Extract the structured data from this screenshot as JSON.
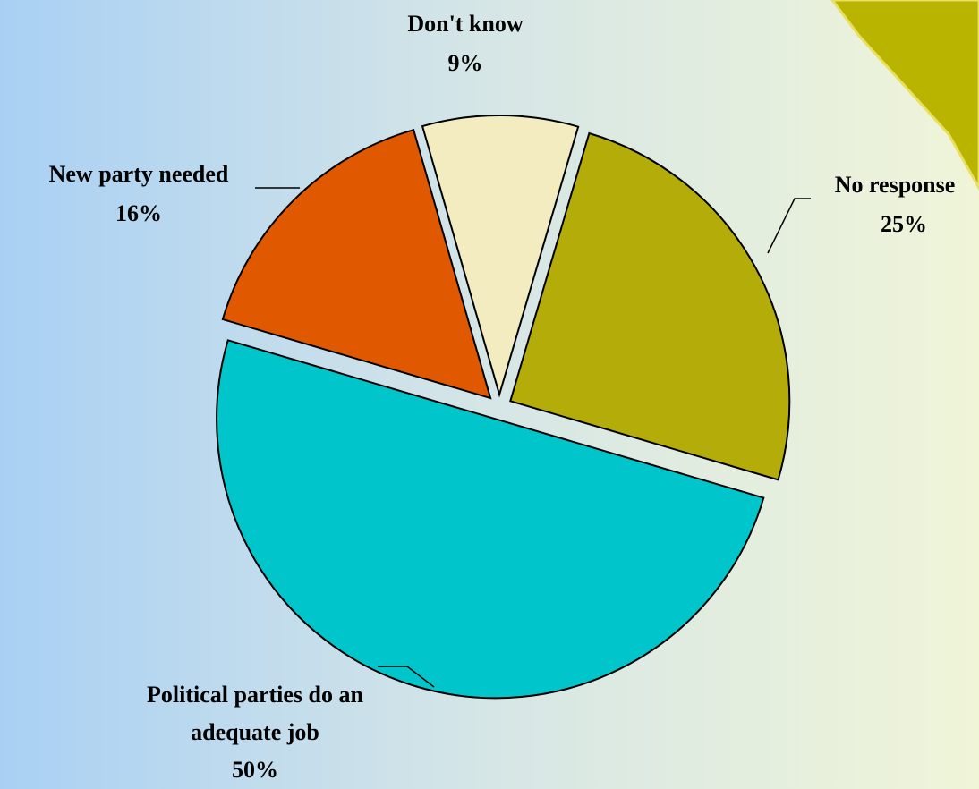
{
  "chart_data": {
    "type": "pie",
    "categories": [
      "Don't know",
      "No response",
      "Political parties do an adequate job",
      "New party needed"
    ],
    "values": [
      9,
      25,
      50,
      16
    ],
    "value_labels": [
      "9%",
      "25%",
      "50%",
      "16%"
    ],
    "colors": [
      "#f3ecc0",
      "#b4ac08",
      "#00c6cc",
      "#e05800"
    ]
  }
}
